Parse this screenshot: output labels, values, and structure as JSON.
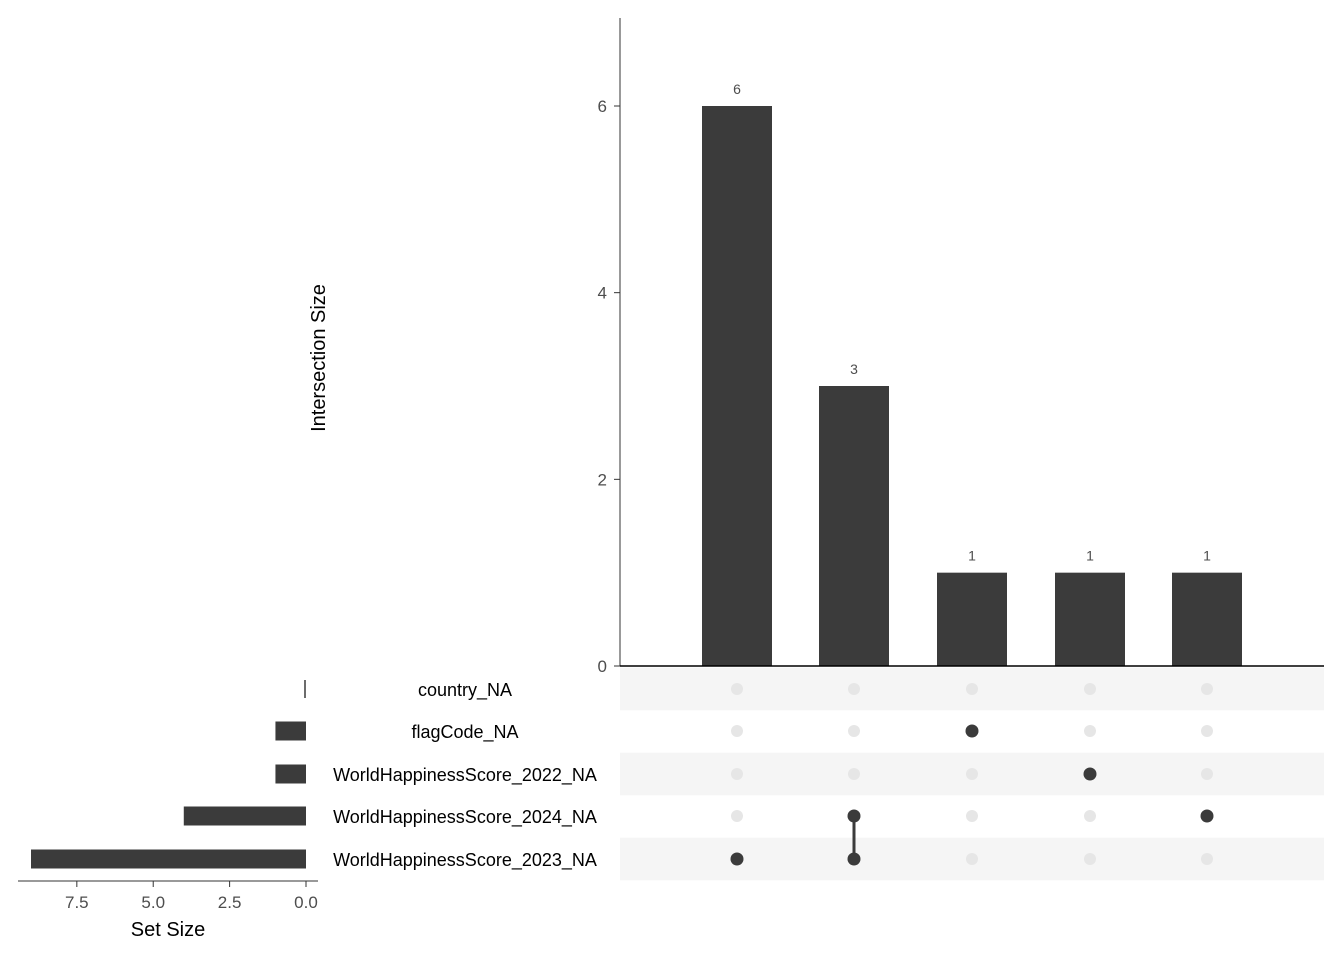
{
  "chart_data": {
    "type": "upset",
    "intersection_axis": {
      "ylabel": "Intersection Size",
      "ylim": [
        0,
        6.9
      ],
      "ticks": [
        "0",
        "2",
        "4",
        "6"
      ]
    },
    "intersections": [
      {
        "value": 6,
        "label": "6",
        "members": [
          "WorldHappinessScore_2023_NA"
        ]
      },
      {
        "value": 3,
        "label": "3",
        "members": [
          "WorldHappinessScore_2024_NA",
          "WorldHappinessScore_2023_NA"
        ]
      },
      {
        "value": 1,
        "label": "1",
        "members": [
          "flagCode_NA"
        ]
      },
      {
        "value": 1,
        "label": "1",
        "members": [
          "WorldHappinessScore_2022_NA"
        ]
      },
      {
        "value": 1,
        "label": "1",
        "members": [
          "WorldHappinessScore_2024_NA"
        ]
      }
    ],
    "sets": [
      {
        "name": "country_NA",
        "size": 0
      },
      {
        "name": "flagCode_NA",
        "size": 1
      },
      {
        "name": "WorldHappinessScore_2022_NA",
        "size": 1
      },
      {
        "name": "WorldHappinessScore_2024_NA",
        "size": 4
      },
      {
        "name": "WorldHappinessScore_2023_NA",
        "size": 9
      }
    ],
    "set_size_axis": {
      "xlabel": "Set Size",
      "xlim": [
        0,
        9.35
      ],
      "ticks": [
        "7.5",
        "5.0",
        "2.5",
        "0.0"
      ],
      "reversed": true
    },
    "colors": {
      "bar": "#3b3b3b",
      "dot_active": "#3b3b3b",
      "dot_inactive": "#e6e6e6",
      "stripe": "#f5f5f5"
    }
  }
}
